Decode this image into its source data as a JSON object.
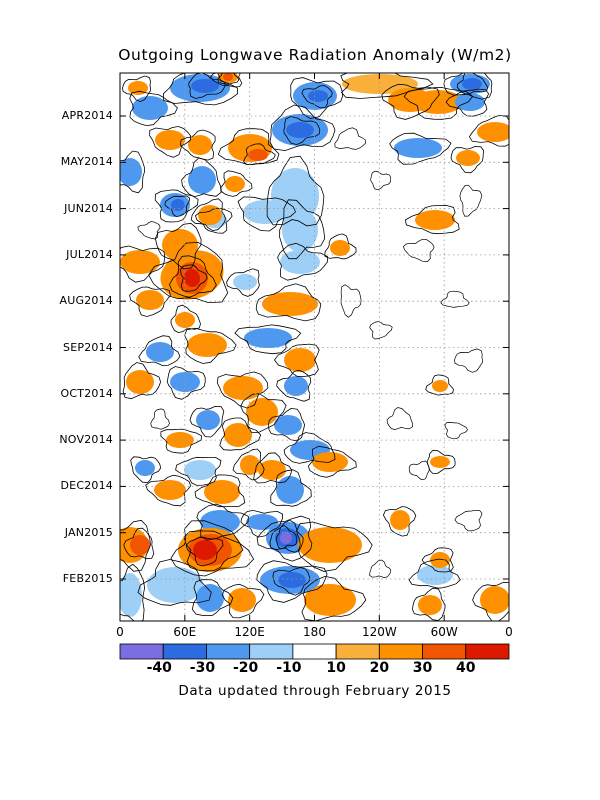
{
  "chart_data": {
    "type": "heatmap",
    "title": "Outgoing Longwave Radiation Anomaly (W/m2)",
    "footer": "Data updated through February 2015",
    "y_ticks": [
      "APR2014",
      "MAY2014",
      "JUN2014",
      "JUL2014",
      "AUG2014",
      "SEP2014",
      "OCT2014",
      "NOV2014",
      "DEC2014",
      "JAN2015",
      "FEB2015"
    ],
    "x_ticks": [
      "0",
      "60E",
      "120E",
      "180",
      "120W",
      "60W",
      "0"
    ],
    "colorbar": {
      "levels": [
        "-40",
        "-30",
        "-20",
        "-10",
        "10",
        "20",
        "30",
        "40"
      ],
      "colors": [
        "#7b6ee0",
        "#2d6be0",
        "#4f98f0",
        "#9dcff7",
        "#ffffff",
        "#f9b03a",
        "#ff9000",
        "#f25500",
        "#dd1a00"
      ]
    },
    "extremes": [
      {
        "lon": "70E",
        "time": "late JUL2014",
        "value": "40"
      },
      {
        "lon": "60E",
        "time": "mid JAN2015",
        "value": "40"
      },
      {
        "lon": "150E",
        "time": "mid JAN2015",
        "value": "-40"
      }
    ]
  }
}
